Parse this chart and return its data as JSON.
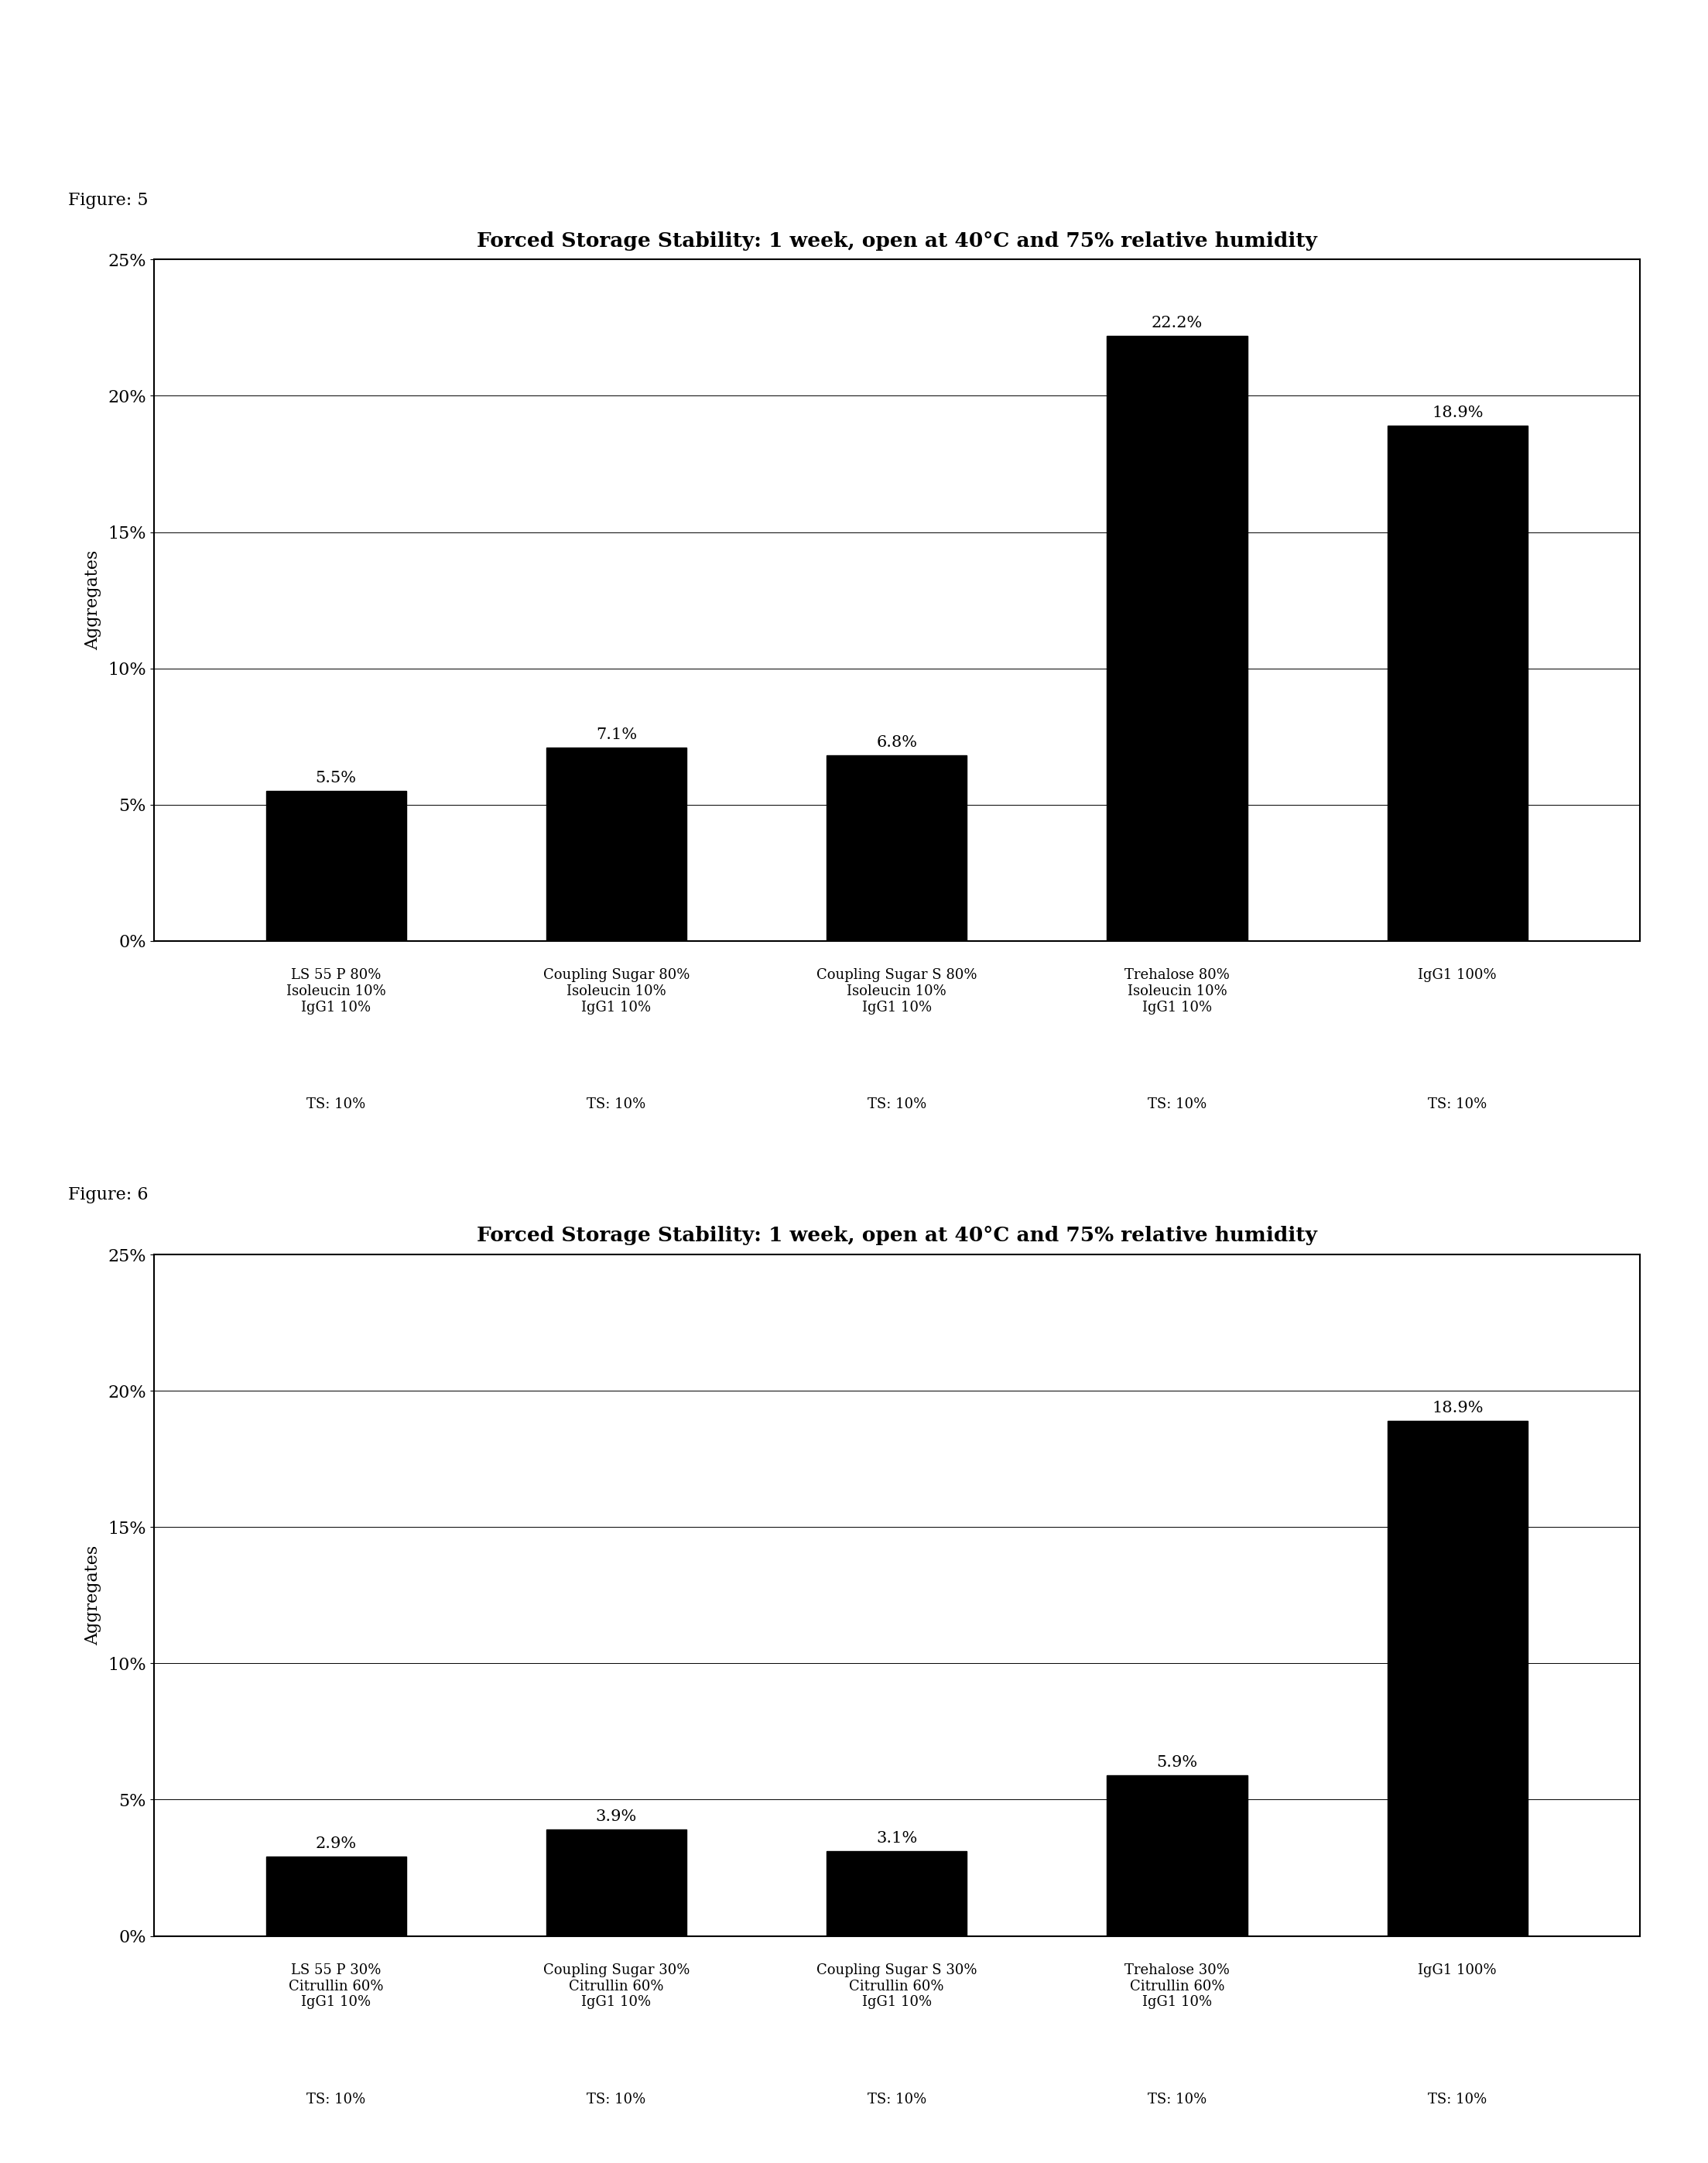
{
  "fig5": {
    "title": "Forced Storage Stability: 1 week, open at 40°C and 75% relative humidity",
    "figure_label": "Figure: 5",
    "values": [
      5.5,
      7.1,
      6.8,
      22.2,
      18.9
    ],
    "labels_line1": [
      "LS 55 P 80%",
      "Coupling Sugar 80%",
      "Coupling Sugar S 80%",
      "Trehalose 80%",
      "IgG1 100%"
    ],
    "labels_line2": [
      "Isoleucin 10%",
      "Isoleucin 10%",
      "Isoleucin 10%",
      "Isoleucin 10%",
      ""
    ],
    "labels_line3": [
      "IgG1 10%",
      "IgG1 10%",
      "IgG1 10%",
      "IgG1 10%",
      ""
    ],
    "labels_ts": [
      "TS: 10%",
      "TS: 10%",
      "TS: 10%",
      "TS: 10%",
      "TS: 10%"
    ],
    "ylabel": "Aggregates",
    "ylim": [
      0,
      0.25
    ],
    "yticks": [
      0.0,
      0.05,
      0.1,
      0.15,
      0.2,
      0.25
    ],
    "yticklabels": [
      "0%",
      "5%",
      "10%",
      "15%",
      "20%",
      "25%"
    ],
    "bar_color": "#000000",
    "value_labels": [
      "5.5%",
      "7.1%",
      "6.8%",
      "22.2%",
      "18.9%"
    ]
  },
  "fig6": {
    "title": "Forced Storage Stability: 1 week, open at 40°C and 75% relative humidity",
    "figure_label": "Figure: 6",
    "values": [
      2.9,
      3.9,
      3.1,
      5.9,
      18.9
    ],
    "labels_line1": [
      "LS 55 P 30%",
      "Coupling Sugar 30%",
      "Coupling Sugar S 30%",
      "Trehalose 30%",
      "IgG1 100%"
    ],
    "labels_line2": [
      "Citrullin 60%",
      "Citrullin 60%",
      "Citrullin 60%",
      "Citrullin 60%",
      ""
    ],
    "labels_line3": [
      "IgG1 10%",
      "IgG1 10%",
      "IgG1 10%",
      "IgG1 10%",
      ""
    ],
    "labels_ts": [
      "TS: 10%",
      "TS: 10%",
      "TS: 10%",
      "TS: 10%",
      "TS: 10%"
    ],
    "ylabel": "Aggregates",
    "ylim": [
      0,
      0.25
    ],
    "yticks": [
      0.0,
      0.05,
      0.1,
      0.15,
      0.2,
      0.25
    ],
    "yticklabels": [
      "0%",
      "5%",
      "10%",
      "15%",
      "20%",
      "25%"
    ],
    "bar_color": "#000000",
    "value_labels": [
      "2.9%",
      "3.9%",
      "3.1%",
      "5.9%",
      "18.9%"
    ]
  },
  "background_color": "#ffffff",
  "title_fontsize": 19,
  "label_fontsize": 13,
  "tick_fontsize": 16,
  "ylabel_fontsize": 16,
  "figure_label_fontsize": 16,
  "value_label_fontsize": 15
}
